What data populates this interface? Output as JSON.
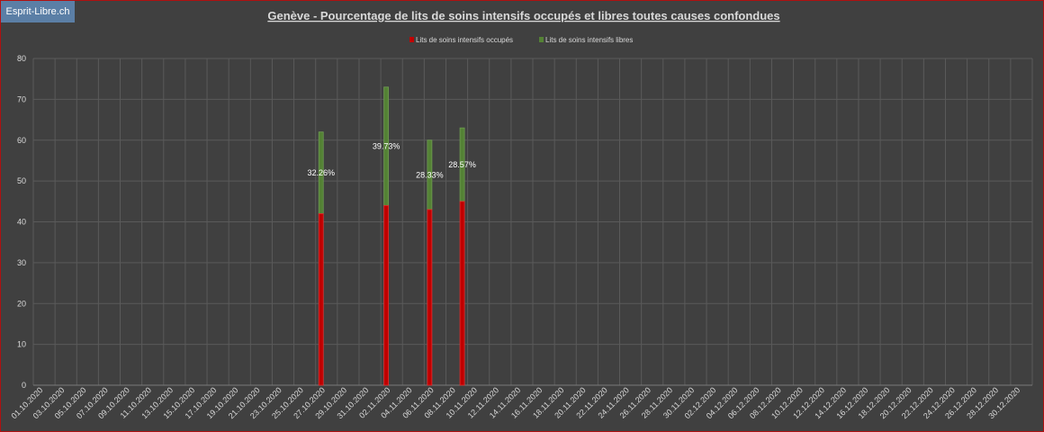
{
  "badge": {
    "label": "Esprit-Libre.ch"
  },
  "colors": {
    "background": "#404040",
    "grid": "#5a5a5a",
    "text": "#d9d9d9",
    "occupied": "#c00000",
    "free": "#548235",
    "border": "#b01010"
  },
  "chart_data": {
    "type": "bar",
    "stacked": true,
    "title": "Genève - Pourcentage de lits de soins intensifs occupés et libres toutes causes confondues",
    "xlabel": "",
    "ylabel": "",
    "ylim": [
      0,
      80
    ],
    "yticks": [
      0,
      10,
      20,
      30,
      40,
      50,
      60,
      70,
      80
    ],
    "grid": true,
    "legend_position": "top-center",
    "x_start": "01.10.2020",
    "x_end": "31.12.2020",
    "xtick_labels": [
      "01.10.2020",
      "03.10.2020",
      "05.10.2020",
      "07.10.2020",
      "09.10.2020",
      "11.10.2020",
      "13.10.2020",
      "15.10.2020",
      "17.10.2020",
      "19.10.2020",
      "21.10.2020",
      "23.10.2020",
      "25.10.2020",
      "27.10.2020",
      "29.10.2020",
      "31.10.2020",
      "02.11.2020",
      "04.11.2020",
      "06.11.2020",
      "08.11.2020",
      "10.11.2020",
      "12.11.2020",
      "14.11.2020",
      "16.11.2020",
      "18.11.2020",
      "20.11.2020",
      "22.11.2020",
      "24.11.2020",
      "26.11.2020",
      "28.11.2020",
      "30.11.2020",
      "02.12.2020",
      "04.12.2020",
      "06.12.2020",
      "08.12.2020",
      "10.12.2020",
      "12.12.2020",
      "14.12.2020",
      "16.12.2020",
      "18.12.2020",
      "20.12.2020",
      "22.12.2020",
      "24.12.2020",
      "26.12.2020",
      "28.12.2020",
      "30.12.2020"
    ],
    "series": [
      {
        "name": "Lits de soins intensifs occupés",
        "color": "#c00000",
        "points": [
          {
            "x": "27.10.2020",
            "y": 42
          },
          {
            "x": "02.11.2020",
            "y": 44
          },
          {
            "x": "06.11.2020",
            "y": 43
          },
          {
            "x": "09.11.2020",
            "y": 45
          }
        ]
      },
      {
        "name": "Lits de soins intensifs libres",
        "color": "#548235",
        "points": [
          {
            "x": "27.10.2020",
            "y": 20
          },
          {
            "x": "02.11.2020",
            "y": 29
          },
          {
            "x": "06.11.2020",
            "y": 17
          },
          {
            "x": "09.11.2020",
            "y": 18
          }
        ]
      }
    ],
    "annotations": [
      {
        "x": "27.10.2020",
        "text": "32.26%"
      },
      {
        "x": "02.11.2020",
        "text": "39.73%"
      },
      {
        "x": "06.11.2020",
        "text": "28.33%"
      },
      {
        "x": "09.11.2020",
        "text": "28.57%"
      }
    ]
  }
}
